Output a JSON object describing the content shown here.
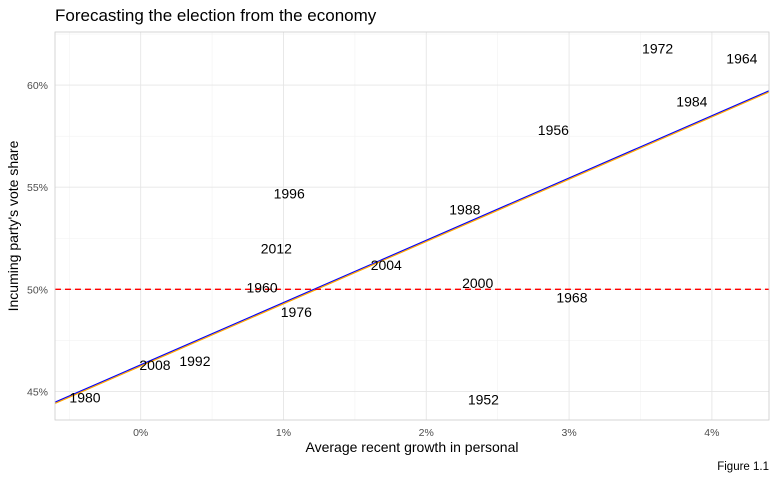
{
  "chart_data": {
    "type": "scatter",
    "title": "Forecasting the election from the economy",
    "xlabel": "Average recent growth in personal",
    "ylabel": "Incuming party's vote share",
    "caption": "Figure 1.1",
    "xlim": [
      -0.6,
      4.4
    ],
    "ylim": [
      43.6,
      62.6
    ],
    "x_ticks": [
      0,
      1,
      2,
      3,
      4
    ],
    "x_tick_labels": [
      "0%",
      "1%",
      "2%",
      "3%",
      "4%"
    ],
    "y_ticks": [
      45,
      50,
      55,
      60
    ],
    "y_tick_labels": [
      "45%",
      "50%",
      "55%",
      "60%"
    ],
    "grid": true,
    "points": [
      {
        "label": "1952",
        "x": 2.4,
        "y": 44.6
      },
      {
        "label": "1956",
        "x": 2.89,
        "y": 57.8
      },
      {
        "label": "1960",
        "x": 0.85,
        "y": 50.1
      },
      {
        "label": "1964",
        "x": 4.21,
        "y": 61.3
      },
      {
        "label": "1968",
        "x": 3.02,
        "y": 49.6
      },
      {
        "label": "1972",
        "x": 3.62,
        "y": 61.8
      },
      {
        "label": "1976",
        "x": 1.09,
        "y": 48.9
      },
      {
        "label": "1980",
        "x": -0.39,
        "y": 44.7
      },
      {
        "label": "1984",
        "x": 3.86,
        "y": 59.2
      },
      {
        "label": "1988",
        "x": 2.27,
        "y": 53.9
      },
      {
        "label": "1992",
        "x": 0.38,
        "y": 46.5
      },
      {
        "label": "1996",
        "x": 1.04,
        "y": 54.7
      },
      {
        "label": "2000",
        "x": 2.36,
        "y": 50.3
      },
      {
        "label": "2004",
        "x": 1.72,
        "y": 51.2
      },
      {
        "label": "2008",
        "x": 0.1,
        "y": 46.3
      },
      {
        "label": "2012",
        "x": 0.95,
        "y": 52.0
      }
    ],
    "fit_lines": [
      {
        "color": "#0000ff",
        "intercept": 46.3,
        "slope": 3.05
      },
      {
        "color": "#ffa500",
        "intercept": 46.24,
        "slope": 3.05
      }
    ],
    "reference_line": {
      "y": 50,
      "color": "#ff0000",
      "style": "dashed"
    }
  }
}
